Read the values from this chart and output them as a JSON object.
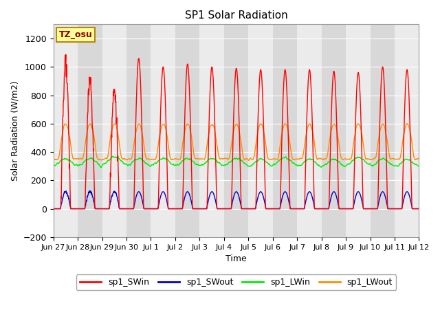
{
  "title": "SP1 Solar Radiation",
  "ylabel": "Solar Radiation (W/m2)",
  "xlabel": "Time",
  "ylim": [
    -200,
    1300
  ],
  "yticks": [
    -200,
    0,
    200,
    400,
    600,
    800,
    1000,
    1200
  ],
  "background_color": "#ffffff",
  "plot_bg_color_light": "#f0f0f0",
  "plot_bg_color_dark": "#d8d8d8",
  "grid_color": "#ffffff",
  "tz_label": "TZ_osu",
  "tz_box_facecolor": "#ffff99",
  "tz_border_color": "#b8860b",
  "tz_text_color": "#8b0000",
  "colors": {
    "SWin": "#ff0000",
    "SWout": "#0000cc",
    "LWin": "#00ee00",
    "LWout": "#ff8c00"
  },
  "tick_labels": [
    "Jun 27",
    "Jun 28",
    "Jun 29",
    "Jun 30",
    "Jul 1",
    "Jul 2",
    "Jul 3",
    "Jul 4",
    "Jul 5",
    "Jul 6",
    "Jul 7",
    "Jul 8",
    "Jul 9",
    "Jul 10",
    "Jul 11",
    "Jul 12"
  ],
  "n_days": 15
}
